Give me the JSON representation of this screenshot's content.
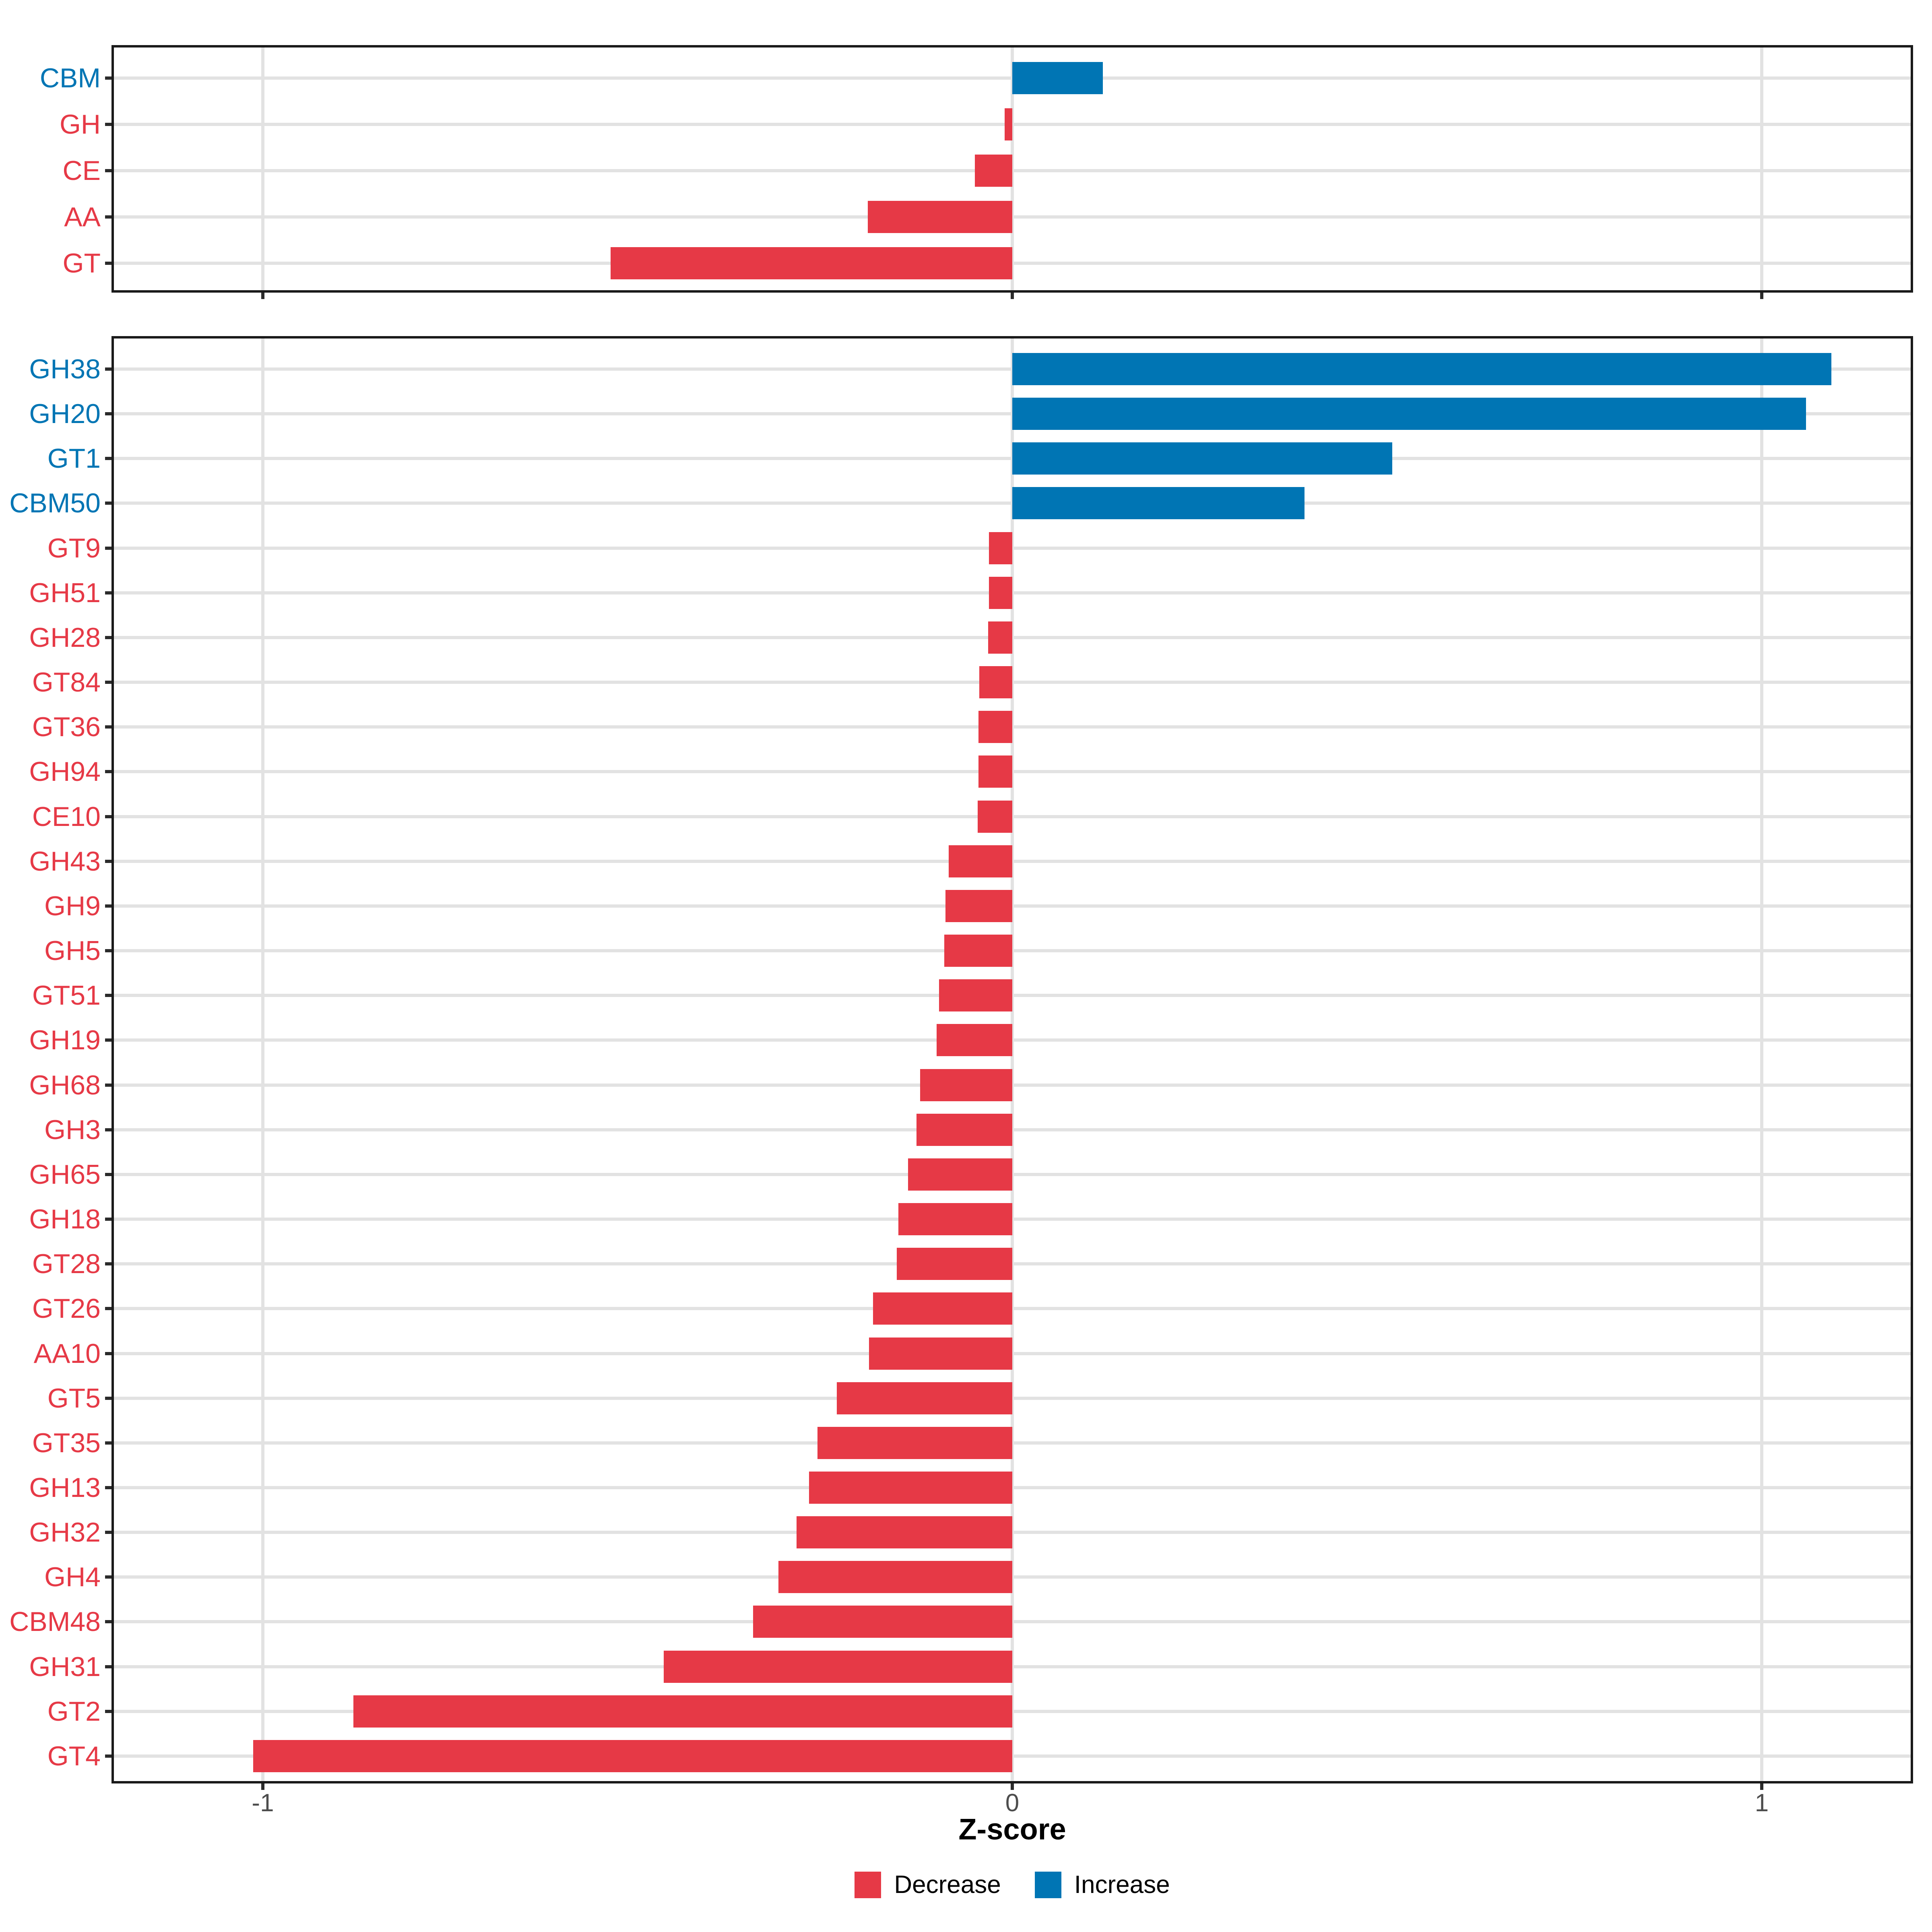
{
  "chart_data": [
    {
      "type": "bar",
      "id": "top-panel",
      "orientation": "horizontal",
      "categories": [
        "CBM",
        "GH",
        "CE",
        "AA",
        "GT"
      ],
      "values": [
        0.121,
        -0.01,
        -0.05,
        -0.193,
        -0.536
      ],
      "directions": [
        "increase",
        "decrease",
        "decrease",
        "decrease",
        "decrease"
      ],
      "xlim": [
        -1.2,
        1.2
      ],
      "x_ticks": [
        -1,
        0,
        1
      ],
      "grid": true
    },
    {
      "type": "bar",
      "id": "bottom-panel",
      "orientation": "horizontal",
      "categories": [
        "GH38",
        "GH20",
        "GT1",
        "CBM50",
        "GT9",
        "GH51",
        "GH28",
        "GT84",
        "GT36",
        "GH94",
        "CE10",
        "GH43",
        "GH9",
        "GH5",
        "GT51",
        "GH19",
        "GH68",
        "GH3",
        "GH65",
        "GH18",
        "GT28",
        "GT26",
        "AA10",
        "GT5",
        "GT35",
        "GH13",
        "GH32",
        "GH4",
        "CBM48",
        "GH31",
        "GT2",
        "GT4"
      ],
      "values": [
        1.093,
        1.059,
        0.507,
        0.39,
        -0.031,
        -0.031,
        -0.032,
        -0.044,
        -0.045,
        -0.045,
        -0.046,
        -0.085,
        -0.089,
        -0.091,
        -0.098,
        -0.101,
        -0.123,
        -0.128,
        -0.139,
        -0.152,
        -0.154,
        -0.186,
        -0.191,
        -0.234,
        -0.26,
        -0.271,
        -0.288,
        -0.312,
        -0.346,
        -0.465,
        -0.879,
        -1.013
      ],
      "directions": [
        "increase",
        "increase",
        "increase",
        "increase",
        "decrease",
        "decrease",
        "decrease",
        "decrease",
        "decrease",
        "decrease",
        "decrease",
        "decrease",
        "decrease",
        "decrease",
        "decrease",
        "decrease",
        "decrease",
        "decrease",
        "decrease",
        "decrease",
        "decrease",
        "decrease",
        "decrease",
        "decrease",
        "decrease",
        "decrease",
        "decrease",
        "decrease",
        "decrease",
        "decrease",
        "decrease",
        "decrease"
      ],
      "xlim": [
        -1.2,
        1.2
      ],
      "x_ticks": [
        -1,
        0,
        1
      ],
      "xlabel": "Z-score",
      "grid": true
    }
  ],
  "axis": {
    "title": "Z-score",
    "tick_values": [
      -1,
      0,
      1
    ],
    "tick_labels": [
      "-1",
      "0",
      "1"
    ]
  },
  "legend": {
    "position": "bottom",
    "items": [
      {
        "label": "Decrease",
        "color": "#E63946"
      },
      {
        "label": "Increase",
        "color": "#0075B4"
      }
    ]
  },
  "colors": {
    "increase": "#0075B4",
    "decrease": "#E63946",
    "grid": "#E2E2E2",
    "panel_border": "#1A1A1A",
    "tick": "#2B2B2B",
    "tick_label_text": "#4D4D4D",
    "background": "#FFFFFF"
  }
}
